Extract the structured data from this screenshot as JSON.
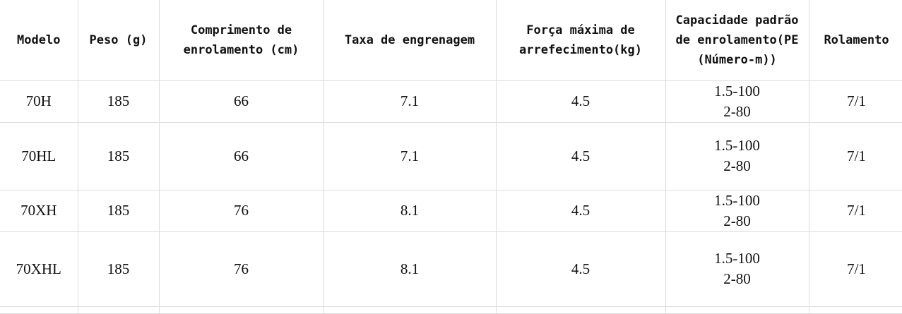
{
  "table": {
    "headers": [
      "Modelo",
      "Peso (g)",
      "Comprimento de enrolamento (cm)",
      "Taxa de engrenagem",
      "Força máxima de arrefecimento(kg)",
      "Capacidade padrão de enrolamento(PE (Número-m))",
      "Rolamento"
    ],
    "rows": [
      {
        "modelo": "70H",
        "peso": "185",
        "comprimento": "66",
        "taxa": "7.1",
        "forca": "4.5",
        "capacidade_1": "1.5-100",
        "capacidade_2": "2-80",
        "rolamento": "7/1"
      },
      {
        "modelo": "70HL",
        "peso": "185",
        "comprimento": "66",
        "taxa": "7.1",
        "forca": "4.5",
        "capacidade_1": "1.5-100",
        "capacidade_2": "2-80",
        "rolamento": "7/1"
      },
      {
        "modelo": "70XH",
        "peso": "185",
        "comprimento": "76",
        "taxa": "8.1",
        "forca": "4.5",
        "capacidade_1": "1.5-100",
        "capacidade_2": "2-80",
        "rolamento": "7/1"
      },
      {
        "modelo": "70XHL",
        "peso": "185",
        "comprimento": "76",
        "taxa": "8.1",
        "forca": "4.5",
        "capacidade_1": "1.5-100",
        "capacidade_2": "2-80",
        "rolamento": "7/1"
      }
    ]
  }
}
